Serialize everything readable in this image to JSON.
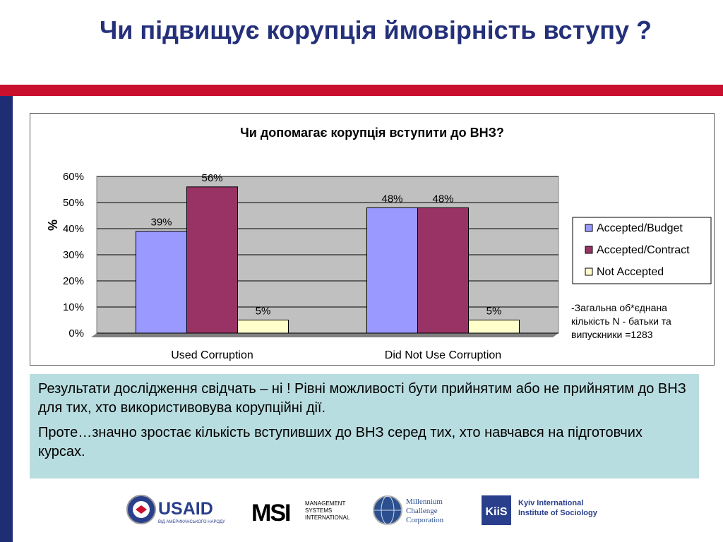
{
  "slide": {
    "title": "Чи підвищує корупція ймовірність вступу ?"
  },
  "chart_data": {
    "type": "bar",
    "title": "Чи допомагає корупція вступити до ВНЗ?",
    "ylabel": "%",
    "xlabel": "",
    "categories": [
      "Used Corruption",
      "Did Not Use Corruption"
    ],
    "series": [
      {
        "name": "Accepted/Budget",
        "values": [
          39,
          48
        ],
        "labels": [
          "39%",
          "48%"
        ],
        "color": "#9999ff"
      },
      {
        "name": "Accepted/Contract",
        "values": [
          56,
          48
        ],
        "labels": [
          "56%",
          "48%"
        ],
        "color": "#993366"
      },
      {
        "name": "Not Accepted",
        "values": [
          5,
          5
        ],
        "labels": [
          "5%",
          "5%"
        ],
        "color": "#ffffcc"
      }
    ],
    "ylim": [
      0,
      60
    ],
    "yticks": [
      "0%",
      "10%",
      "20%",
      "30%",
      "40%",
      "50%",
      "60%"
    ],
    "grid": true,
    "plot_background": "#c0c0c0",
    "legend": "right",
    "note": [
      "-Загальна об*єднана",
      "кількість  N  - батьки та",
      "випускники =1283"
    ]
  },
  "text_box": {
    "p1": "Результати дослідження свідчать – ні ! Рівні можливості бути прийнятим або не прийнятим до ВНЗ для тих, хто використивовува корупційні дії.",
    "p2": "Проте…значно зростає кількість вступивших до ВНЗ серед тих, хто навчався на підготовчих курсах."
  },
  "logos": {
    "usaid_word": "USAID",
    "usaid_sub": "ВІД АМЕРИКАНСЬКОГО НАРОДУ",
    "msi_mark": "MSI",
    "msi_text": [
      "MANAGEMENT",
      "SYSTEMS",
      "INTERNATIONAL"
    ],
    "mcc_text": [
      "Millennium",
      "Challenge",
      "Corporation"
    ],
    "kiis_mark": "KiiS",
    "kiis_text": [
      "Kyiv International",
      "Institute of Sociology"
    ]
  }
}
